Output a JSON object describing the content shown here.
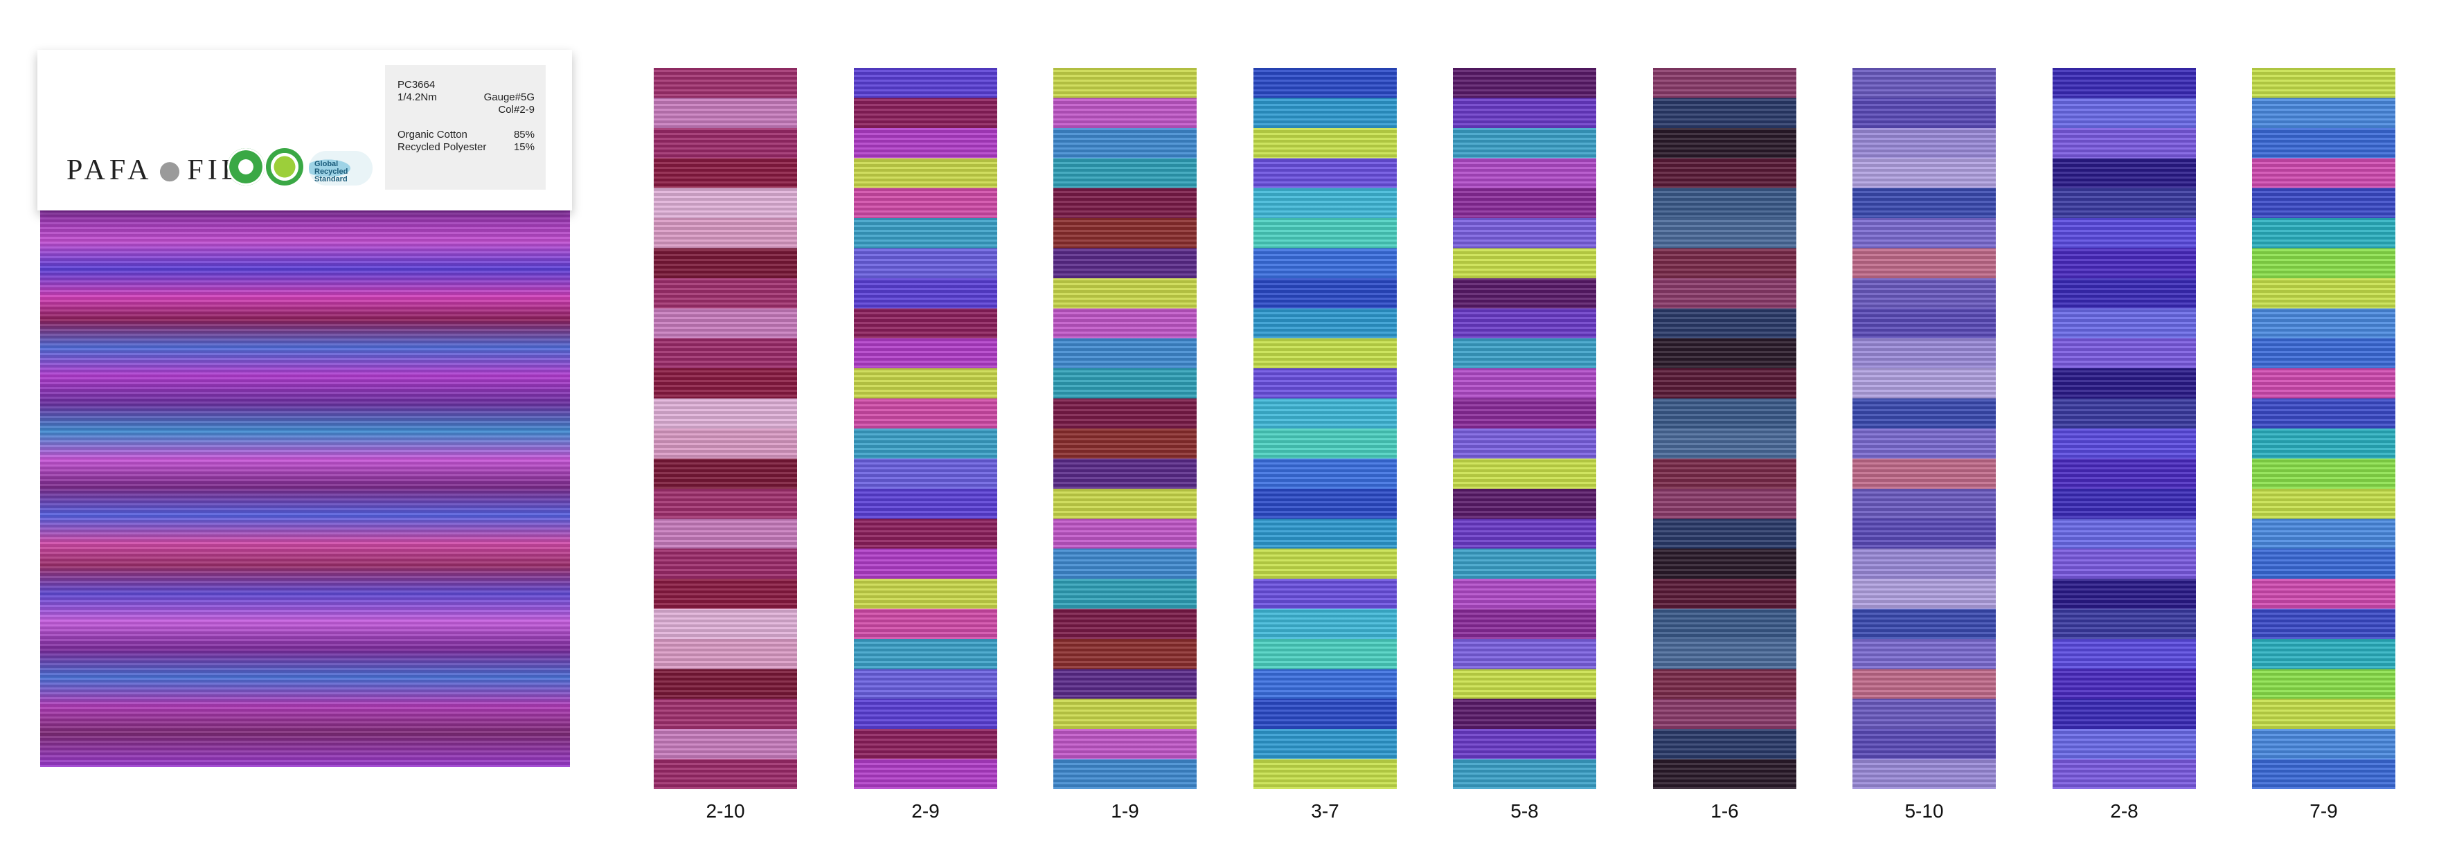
{
  "label": {
    "brand_left": "PAFA",
    "brand_right": "FIL",
    "cert_grs_text": "Global Recycled Standard",
    "specs": {
      "article": "PC3664",
      "count": "1/4.2Nm",
      "gauge": "Gauge#5G",
      "color": "Col#2-9",
      "fiber1_name": "Organic Cotton",
      "fiber1_pct": "85%",
      "fiber2_name": "Recycled Polyester",
      "fiber2_pct": "15%"
    }
  },
  "colorways": [
    {
      "code": "2-10",
      "colors": [
        "#a0306e",
        "#d99ac4",
        "#8a1a42",
        "#c77bbd",
        "#7a1838",
        "#e0b0d8",
        "#9c2a6a"
      ]
    },
    {
      "code": "2-9",
      "colors": [
        "#b03cc8",
        "#5a3fd6",
        "#3aa0c8",
        "#c9d84a",
        "#8c1f5c",
        "#6a60e0",
        "#d04aa8"
      ]
    },
    {
      "code": "1-9",
      "colors": [
        "#7a1a48",
        "#3f8ad0",
        "#c9d84a",
        "#8b2e2e",
        "#2fa0b8",
        "#c056c8",
        "#5a2a8a"
      ]
    },
    {
      "code": "3-7",
      "colors": [
        "#3a6ee0",
        "#3fb8d8",
        "#c6e04a",
        "#2a4ac8",
        "#4ad0c0",
        "#6a50e0",
        "#2e9ad0"
      ]
    },
    {
      "code": "5-8",
      "colors": [
        "#6a3ac8",
        "#c9e04a",
        "#8a2a9a",
        "#3aa0c8",
        "#5a1a6a",
        "#7a60e0",
        "#b04ac8"
      ]
    },
    {
      "code": "1-6",
      "colors": [
        "#5a1a38",
        "#2a3a6a",
        "#7a2a4a",
        "#3a5a8a",
        "#2a1a2a",
        "#8a3a6a",
        "#4a6a9a"
      ]
    },
    {
      "code": "5-10",
      "colors": [
        "#7a6ad0",
        "#b0a0e0",
        "#5a4ab8",
        "#c06a8a",
        "#3a4ab0",
        "#9a8ad8",
        "#6a5ac0"
      ]
    },
    {
      "code": "2-8",
      "colors": [
        "#3a2ab8",
        "#5a4ae0",
        "#2a1a8a",
        "#6a6ae8",
        "#4a2ac0",
        "#3a3aa0",
        "#7a5ae0"
      ]
    },
    {
      "code": "7-9",
      "colors": [
        "#3a6ad8",
        "#c6e04a",
        "#2ab0c0",
        "#d04ab0",
        "#4a8ae0",
        "#8ae04a",
        "#3a4ac8"
      ]
    }
  ]
}
